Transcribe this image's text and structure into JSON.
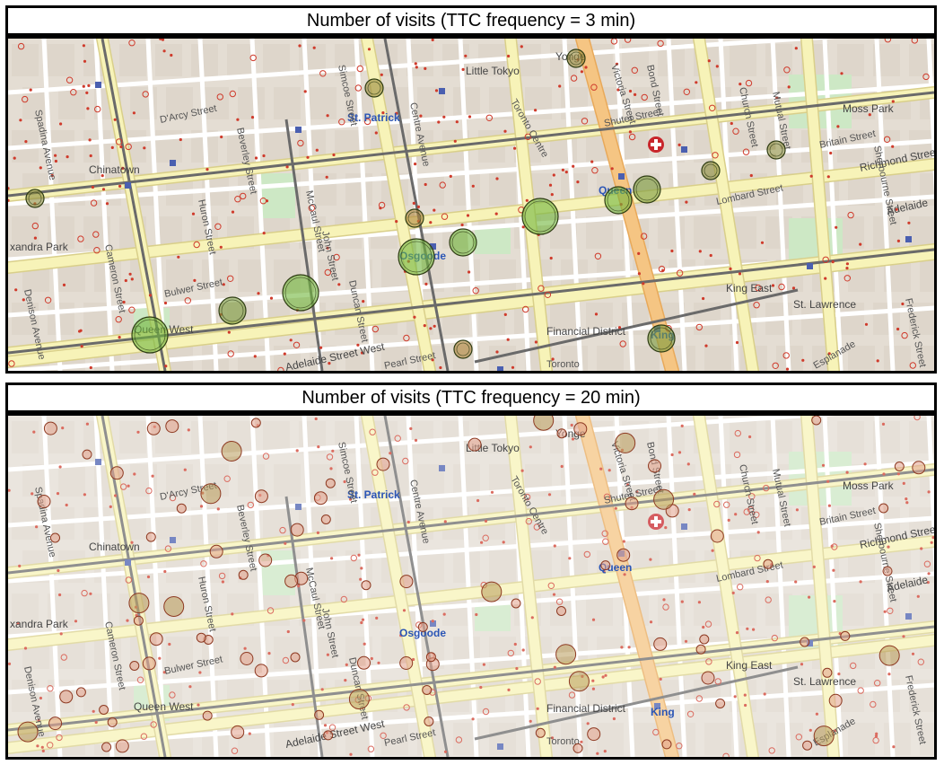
{
  "panels": [
    {
      "title": "Number of visits (TTC frequency = 3 min)",
      "faded": false,
      "visits": [
        {
          "id": "queen-west-hub",
          "size": "large",
          "color": "#6fb53a"
        },
        {
          "id": "mccaul-stop",
          "size": "large",
          "color": "#6fb53a"
        },
        {
          "id": "osgoode",
          "size": "large",
          "color": "#6fb53a"
        },
        {
          "id": "university-a",
          "size": "medium",
          "color": "#6fb53a"
        },
        {
          "id": "bay-queen",
          "size": "large",
          "color": "#6fb53a"
        },
        {
          "id": "queen-station-a",
          "size": "medium",
          "color": "#6fb53a"
        },
        {
          "id": "queen-station-b",
          "size": "medium",
          "color": "#7a9a3a"
        },
        {
          "id": "victoria-queen",
          "size": "small",
          "color": "#8a8a3a"
        },
        {
          "id": "church-queen",
          "size": "small",
          "color": "#8a8a3a"
        },
        {
          "id": "jarvis-queen",
          "size": "small",
          "color": "#8a8a3a"
        },
        {
          "id": "beverley-queen",
          "size": "medium",
          "color": "#7a9a3a"
        },
        {
          "id": "st-patrick",
          "size": "small",
          "color": "#9a8a3a"
        },
        {
          "id": "king-station",
          "size": "medium",
          "color": "#7a9a3a"
        },
        {
          "id": "york-adelaide",
          "size": "small",
          "color": "#b0863a"
        },
        {
          "id": "yonge-dundas",
          "size": "small",
          "color": "#9a8a3a"
        },
        {
          "id": "university-richmond",
          "size": "small",
          "color": "#b0863a"
        }
      ]
    },
    {
      "title": "Number of visits (TTC frequency = 20 min)",
      "faded": true,
      "visits": []
    }
  ],
  "map_labels": {
    "chinatown": "Chinatown",
    "little_tokyo": "Little Tokyo",
    "st_patrick": "St. Patrick",
    "osgoode": "Osgoode",
    "queen": "Queen",
    "king": "King",
    "queen_west": "Queen West",
    "moss_park": "Moss Park",
    "king_east": "King East",
    "st_lawrence": "St. Lawrence",
    "financial_district": "Financial District",
    "toronto": "Toronto",
    "toronto_centre": "Toronto Centre",
    "alexandra_park": "xandra Park",
    "richmond_street": "Richmond Street",
    "adelaide_street_west": "Adelaide Street West",
    "adelaide": "Adelaide",
    "yonge": "Yonge",
    "bulwer_street": "Bulwer Street",
    "pearl_street": "Pearl Street",
    "lombard_street": "Lombard Street",
    "shuter_street": "Shuter Street",
    "darcy_street": "D'Arcy Street",
    "britain_street": "Britain Street",
    "esplanade": "Esplanade",
    "victoria_street": "Victoria Street",
    "church_street": "Church Street",
    "mutual_street": "Mutual Street",
    "bond_street": "Bond Street",
    "beverley_street": "Beverley Street",
    "mccaul_street": "McCaul Street",
    "simcoe_street": "Simcoe Street",
    "john_street": "John Street",
    "centre_avenue": "Centre Avenue",
    "huron_street": "Huron Street",
    "cameron_street": "Cameron Street",
    "denison_avenue": "Denison Avenue",
    "duncan_street": "Duncan Street",
    "sherbourne_street": "Sherbourne Street",
    "frederick_street": "Frederick Street",
    "spadina_avenue": "Spadina Avenue"
  },
  "colors": {
    "major_road": "#f7f3b8",
    "road_casing": "#d9cf8a",
    "block": "#e4ddd3",
    "building": "#d8cfc4",
    "park": "#cde8c5",
    "rail": "#6a6a6a",
    "primary_road": "#f5c583",
    "stop_dot": "#cf3b2c",
    "station": "#4a5fb0"
  }
}
